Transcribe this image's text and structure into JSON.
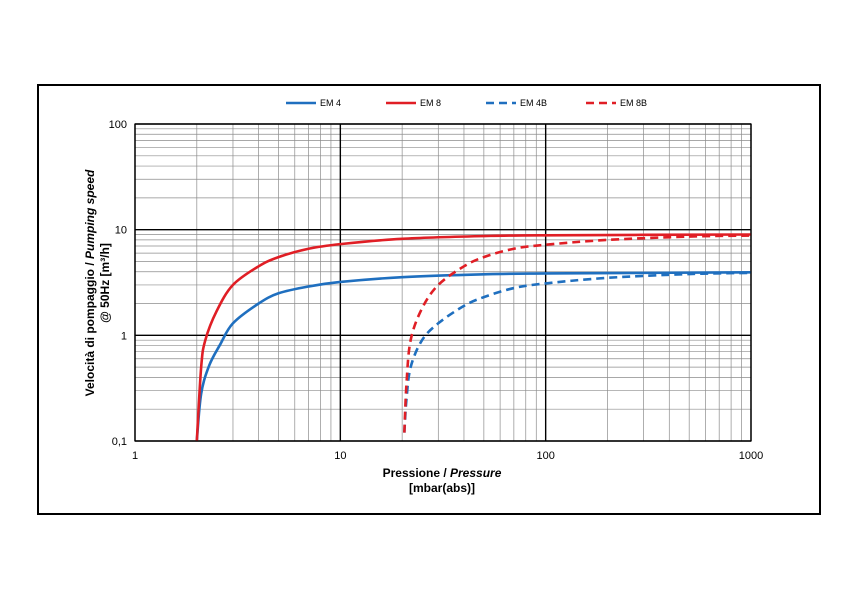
{
  "chart_data": {
    "type": "line",
    "x_scale": "log",
    "y_scale": "log",
    "xlim": [
      1,
      1000
    ],
    "ylim": [
      0.1,
      100
    ],
    "grid": true,
    "legend_position": "top-center",
    "x_ticks": [
      "1",
      "10",
      "100",
      "1000"
    ],
    "y_ticks": [
      "0,1",
      "1",
      "10",
      "100"
    ],
    "xlabel": "Pressione / ",
    "xlabel_italic": "Pressure",
    "xlabel_units": "[mbar(abs)]",
    "ylabel": "Velocità di pompaggio / ",
    "ylabel_italic": "Pumping speed",
    "ylabel_units_line": "@ 50Hz [m³/h]",
    "series": [
      {
        "name": "EM 4",
        "color": "#1f6fbf",
        "style": "solid",
        "x": [
          2.0,
          2.1,
          2.3,
          2.6,
          3,
          4,
          5,
          7,
          10,
          20,
          50,
          100,
          1000
        ],
        "y": [
          0.1,
          0.28,
          0.52,
          0.82,
          1.3,
          2.0,
          2.5,
          2.9,
          3.2,
          3.55,
          3.78,
          3.85,
          3.95
        ]
      },
      {
        "name": "EM 8",
        "color": "#e01e25",
        "style": "solid",
        "x": [
          2.0,
          2.1,
          2.2,
          2.5,
          3,
          4,
          5,
          7,
          10,
          20,
          50,
          100,
          1000
        ],
        "y": [
          0.1,
          0.5,
          0.9,
          1.7,
          3.0,
          4.5,
          5.5,
          6.6,
          7.3,
          8.2,
          8.7,
          8.85,
          9.0
        ]
      },
      {
        "name": "EM 4B",
        "color": "#1f6fbf",
        "style": "dashed",
        "x": [
          20.5,
          21,
          22,
          25,
          30,
          40,
          50,
          70,
          100,
          200,
          500,
          1000
        ],
        "y": [
          0.12,
          0.25,
          0.5,
          0.9,
          1.3,
          1.9,
          2.3,
          2.8,
          3.1,
          3.5,
          3.8,
          3.9
        ]
      },
      {
        "name": "EM 8B",
        "color": "#e01e25",
        "style": "dashed",
        "x": [
          20.5,
          21,
          22,
          25,
          30,
          40,
          50,
          70,
          100,
          200,
          500,
          1000
        ],
        "y": [
          0.12,
          0.35,
          0.9,
          1.8,
          3.0,
          4.5,
          5.5,
          6.6,
          7.2,
          8.0,
          8.6,
          8.8
        ]
      }
    ]
  }
}
